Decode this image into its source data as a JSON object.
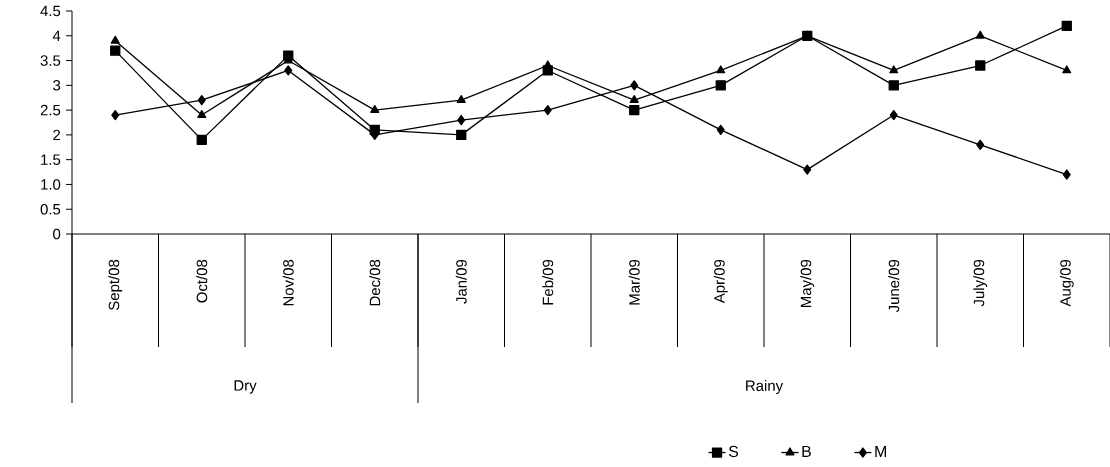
{
  "chart_data": {
    "type": "line",
    "categories": [
      "Sept/08",
      "Oct/08",
      "Nov/08",
      "Dec/08",
      "Jan/09",
      "Feb/09",
      "Mar/09",
      "Apr/09",
      "May/09",
      "June/09",
      "July/09",
      "Aug/09"
    ],
    "series": [
      {
        "name": "S",
        "color": "#000000",
        "marker": "square",
        "values": [
          3.7,
          1.9,
          3.6,
          2.1,
          2.0,
          3.3,
          2.5,
          3.0,
          4.0,
          3.0,
          3.4,
          4.2
        ]
      },
      {
        "name": "B",
        "color": "#000000",
        "marker": "triangle",
        "values": [
          3.9,
          2.4,
          3.5,
          2.5,
          2.7,
          3.4,
          2.7,
          3.3,
          4.0,
          3.3,
          4.0,
          3.3
        ]
      },
      {
        "name": "M",
        "color": "#000000",
        "marker": "diamond",
        "values": [
          2.4,
          2.7,
          3.3,
          2.0,
          2.3,
          2.5,
          3.0,
          2.1,
          1.3,
          2.4,
          1.8,
          1.2
        ]
      }
    ],
    "ylim": [
      0,
      4.5
    ],
    "yticks": [
      0,
      0.5,
      {
        "value": 1,
        "label": "1.0"
      },
      1.5,
      2,
      2.5,
      3,
      3.5,
      4,
      4.5
    ],
    "annotations": [
      "Dry",
      "Rainy"
    ],
    "legend": "bottom",
    "line_style": "solid"
  }
}
